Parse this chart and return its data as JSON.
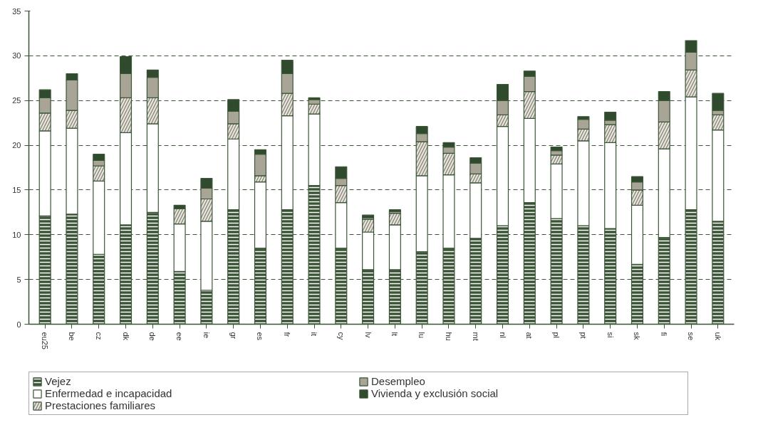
{
  "chart_data": {
    "type": "bar",
    "stacked": true,
    "categories": [
      "eu25",
      "be",
      "cz",
      "dk",
      "de",
      "ee",
      "ie",
      "gr",
      "es",
      "fr",
      "it",
      "cy",
      "lv",
      "lt",
      "lu",
      "hu",
      "mt",
      "nl",
      "at",
      "pl",
      "pt",
      "si",
      "sk",
      "fi",
      "se",
      "uk"
    ],
    "series": [
      {
        "name": "Vejez",
        "color": "#3a5535",
        "values": [
          12.1,
          12.3,
          7.8,
          11.1,
          12.5,
          5.9,
          3.8,
          12.8,
          8.5,
          12.8,
          15.5,
          8.5,
          6.1,
          6.1,
          8.1,
          8.5,
          9.6,
          11.0,
          13.6,
          11.8,
          11.0,
          10.7,
          6.7,
          9.7,
          12.8,
          11.5
        ]
      },
      {
        "name": "Enfermedad e incapacidad",
        "color": "#ffffff",
        "values": [
          9.5,
          9.6,
          8.2,
          10.3,
          9.9,
          5.3,
          7.7,
          7.9,
          7.4,
          10.5,
          8.0,
          5.1,
          4.2,
          5.0,
          8.5,
          8.2,
          6.2,
          11.1,
          9.4,
          6.1,
          9.5,
          9.6,
          6.6,
          9.9,
          12.6,
          10.2
        ]
      },
      {
        "name": "Prestaciones familiares",
        "color": "#e9e7df",
        "values": [
          2.0,
          2.0,
          1.7,
          3.9,
          2.9,
          1.7,
          2.5,
          1.7,
          0.7,
          2.5,
          1.1,
          1.9,
          1.4,
          1.3,
          3.8,
          2.4,
          1.0,
          1.3,
          3.0,
          1.0,
          1.3,
          2.0,
          1.7,
          3.0,
          3.0,
          1.7
        ]
      },
      {
        "name": "Desempleo",
        "color": "#a8a597",
        "values": [
          1.7,
          3.4,
          0.6,
          2.7,
          2.3,
          null,
          1.2,
          1.4,
          2.4,
          2.2,
          0.5,
          0.8,
          0.2,
          0.2,
          0.9,
          0.7,
          1.2,
          1.6,
          1.7,
          0.5,
          1.1,
          0.5,
          0.9,
          2.4,
          2.0,
          0.5
        ]
      },
      {
        "name": "Vivienda y exclusión social",
        "color": "#2f4a2c",
        "values": [
          0.9,
          0.7,
          0.7,
          1.9,
          0.8,
          0.4,
          1.1,
          1.3,
          0.5,
          1.5,
          0.2,
          1.3,
          0.3,
          0.2,
          0.8,
          0.5,
          0.6,
          1.8,
          0.6,
          0.4,
          0.3,
          0.9,
          0.6,
          1.0,
          1.3,
          1.9
        ]
      }
    ],
    "ylim": [
      0,
      35
    ],
    "yticks": [
      0,
      5,
      10,
      15,
      20,
      25,
      30,
      35
    ],
    "grid": "y",
    "legend": "bottom"
  }
}
